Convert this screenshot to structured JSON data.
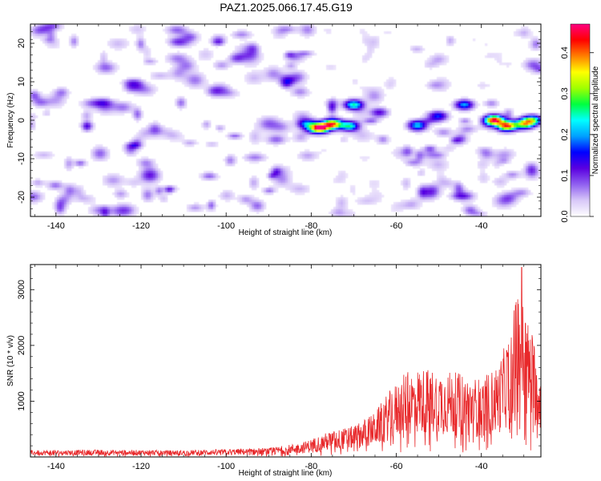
{
  "title": "PAZ1.2025.066.17.45.G19",
  "chart_data": [
    {
      "type": "heatmap",
      "xlabel": "Height of straight line (km)",
      "ylabel": "Frequency (Hz)",
      "xlim": [
        -146,
        -26
      ],
      "ylim": [
        -25,
        25
      ],
      "xticks": [
        -140,
        -120,
        -100,
        -80,
        -60,
        -40
      ],
      "yticks": [
        -20,
        -10,
        0,
        10,
        20
      ],
      "colorbar": {
        "label": "Normalized spectral amplitude",
        "range": [
          0,
          0.47
        ],
        "ticks": [
          0.0,
          0.1,
          0.2,
          0.3,
          0.4
        ],
        "colors": [
          "#ffffff",
          "#d8c8f8",
          "#9060f0",
          "#5a00e0",
          "#0000ff",
          "#00a0ff",
          "#00ffff",
          "#00ff40",
          "#a0ff00",
          "#ffff00",
          "#ff8000",
          "#ff0000",
          "#ff0080"
        ]
      },
      "hotspots": [
        {
          "x": -78,
          "y": -2,
          "value": 0.45
        },
        {
          "x": -75,
          "y": -1,
          "value": 0.4
        },
        {
          "x": -71,
          "y": -1.5,
          "value": 0.25
        },
        {
          "x": -70,
          "y": 4,
          "value": 0.25
        },
        {
          "x": -55,
          "y": -1.5,
          "value": 0.2
        },
        {
          "x": -44,
          "y": 4,
          "value": 0.2
        },
        {
          "x": -37,
          "y": 0,
          "value": 0.45
        },
        {
          "x": -34,
          "y": -1.5,
          "value": 0.42
        },
        {
          "x": -30,
          "y": -1,
          "value": 0.3
        },
        {
          "x": -28,
          "y": 0,
          "value": 0.28
        },
        {
          "x": -81,
          "y": -1,
          "value": 0.18
        },
        {
          "x": -64,
          "y": 2,
          "value": 0.12
        },
        {
          "x": -50,
          "y": 1,
          "value": 0.15
        }
      ]
    },
    {
      "type": "line",
      "xlabel": "Height of straight line (km)",
      "ylabel": "SNR (10 * v/v)",
      "xlim": [
        -146,
        -26
      ],
      "ylim": [
        0,
        3450
      ],
      "xticks": [
        -140,
        -120,
        -100,
        -80,
        -60,
        -40
      ],
      "yticks": [
        1000,
        2000,
        3000
      ],
      "series": [
        {
          "color": "#e8282a",
          "envelope": {
            "x": [
              -146,
              -130,
              -110,
              -90,
              -82,
              -76,
              -70,
              -65,
              -62,
              -58,
              -55,
              -50,
              -45,
              -40,
              -36,
              -33,
              -31,
              -29,
              -27,
              -26
            ],
            "y": [
              120,
              130,
              120,
              160,
              260,
              450,
              560,
              800,
              1150,
              1500,
              1600,
              1580,
              1500,
              1400,
              1650,
              2350,
              3300,
              2450,
              2050,
              1600
            ]
          },
          "peak": {
            "x": -30.5,
            "y": 3400
          }
        }
      ]
    }
  ]
}
